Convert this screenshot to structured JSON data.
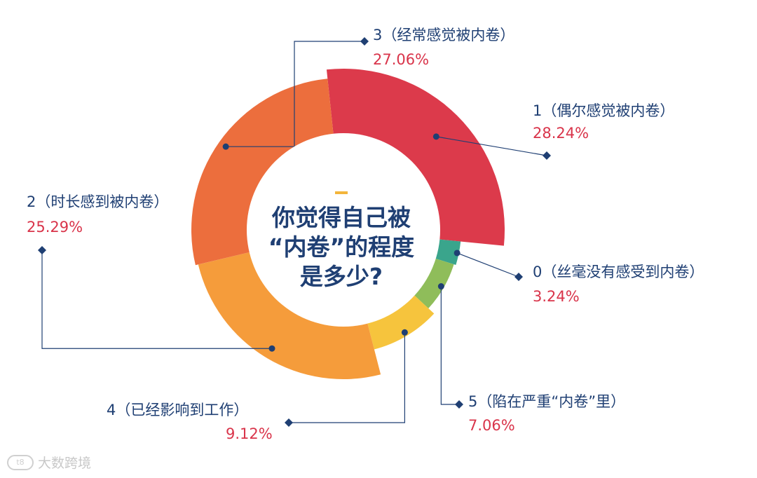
{
  "chart_data": {
    "type": "pie",
    "variant": "rose-donut",
    "center_title_lines": [
      "你觉得自己被",
      "“内卷”的程度",
      "是多少?"
    ],
    "slices": [
      {
        "label": "1（偶尔感觉被内卷）",
        "value": 28.24,
        "value_label": "28.24%",
        "color": "#dc3a4b"
      },
      {
        "label": "0（丝毫没有感受到内卷）",
        "value": 3.24,
        "value_label": "3.24%",
        "color": "#3aa58c"
      },
      {
        "label": "5（陷在严重“内卷”里）",
        "value": 7.06,
        "value_label": "7.06%",
        "color": "#8fbd5a"
      },
      {
        "label": "4（已经影响到工作）",
        "value": 9.12,
        "value_label": "9.12%",
        "color": "#f6c43d"
      },
      {
        "label": "2（时长感到被内卷）",
        "value": 25.29,
        "value_label": "25.29%",
        "color": "#f59c3b"
      },
      {
        "label": "3（经常感觉被内卷）",
        "value": 27.06,
        "value_label": "27.06%",
        "color": "#ec6e3d"
      }
    ],
    "label_color": "#1f3f73",
    "value_color": "#d9344a",
    "accent_dash_color": "#f3b53b"
  },
  "watermark": {
    "text": "大数跨境",
    "logo_text": "t8"
  }
}
